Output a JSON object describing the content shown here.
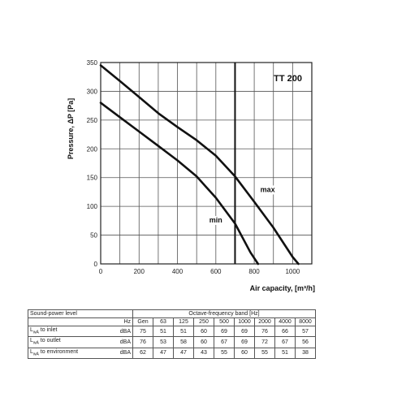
{
  "chart_data": {
    "type": "line",
    "title": "TT 200",
    "xlabel": "Air capacity, [m³/h]",
    "ylabel": "Pressure, ΔP [Pa]",
    "xlim": [
      0,
      1100
    ],
    "ylim": [
      0,
      350
    ],
    "xticks": [
      0,
      200,
      400,
      600,
      800,
      1000
    ],
    "yticks": [
      0,
      50,
      100,
      150,
      200,
      250,
      300,
      350
    ],
    "vline_x": 700,
    "grid": true,
    "series": [
      {
        "name": "max",
        "x": [
          0,
          100,
          200,
          300,
          400,
          500,
          600,
          700,
          800,
          900,
          1000,
          1030
        ],
        "y": [
          345,
          318,
          290,
          262,
          238,
          215,
          188,
          152,
          108,
          63,
          12,
          0
        ]
      },
      {
        "name": "min",
        "x": [
          0,
          100,
          200,
          300,
          400,
          500,
          600,
          700,
          780,
          820
        ],
        "y": [
          280,
          255,
          230,
          205,
          180,
          152,
          115,
          70,
          20,
          0
        ]
      }
    ],
    "label_positions": {
      "max": [
        870,
        125
      ],
      "min": [
        600,
        72
      ]
    }
  },
  "table": {
    "header_label": "Sound-power level",
    "band_header": "Octave-frequency band [Hz]",
    "hz_label": "Hz",
    "bands": [
      "Gen",
      "63",
      "125",
      "250",
      "500",
      "1000",
      "2000",
      "4000",
      "8000"
    ],
    "rows": [
      {
        "label_main": "L",
        "label_sub": "wA",
        "label_rest": " to inlet",
        "unit": "dBA",
        "values": [
          "75",
          "51",
          "51",
          "60",
          "69",
          "69",
          "76",
          "66",
          "57"
        ]
      },
      {
        "label_main": "L",
        "label_sub": "wA",
        "label_rest": " to outlet",
        "unit": "dBA",
        "values": [
          "76",
          "53",
          "58",
          "60",
          "67",
          "69",
          "72",
          "67",
          "56"
        ]
      },
      {
        "label_main": "L",
        "label_sub": "wA",
        "label_rest": " to environment",
        "unit": "dBA",
        "values": [
          "62",
          "47",
          "47",
          "43",
          "55",
          "60",
          "55",
          "51",
          "38"
        ]
      }
    ]
  }
}
